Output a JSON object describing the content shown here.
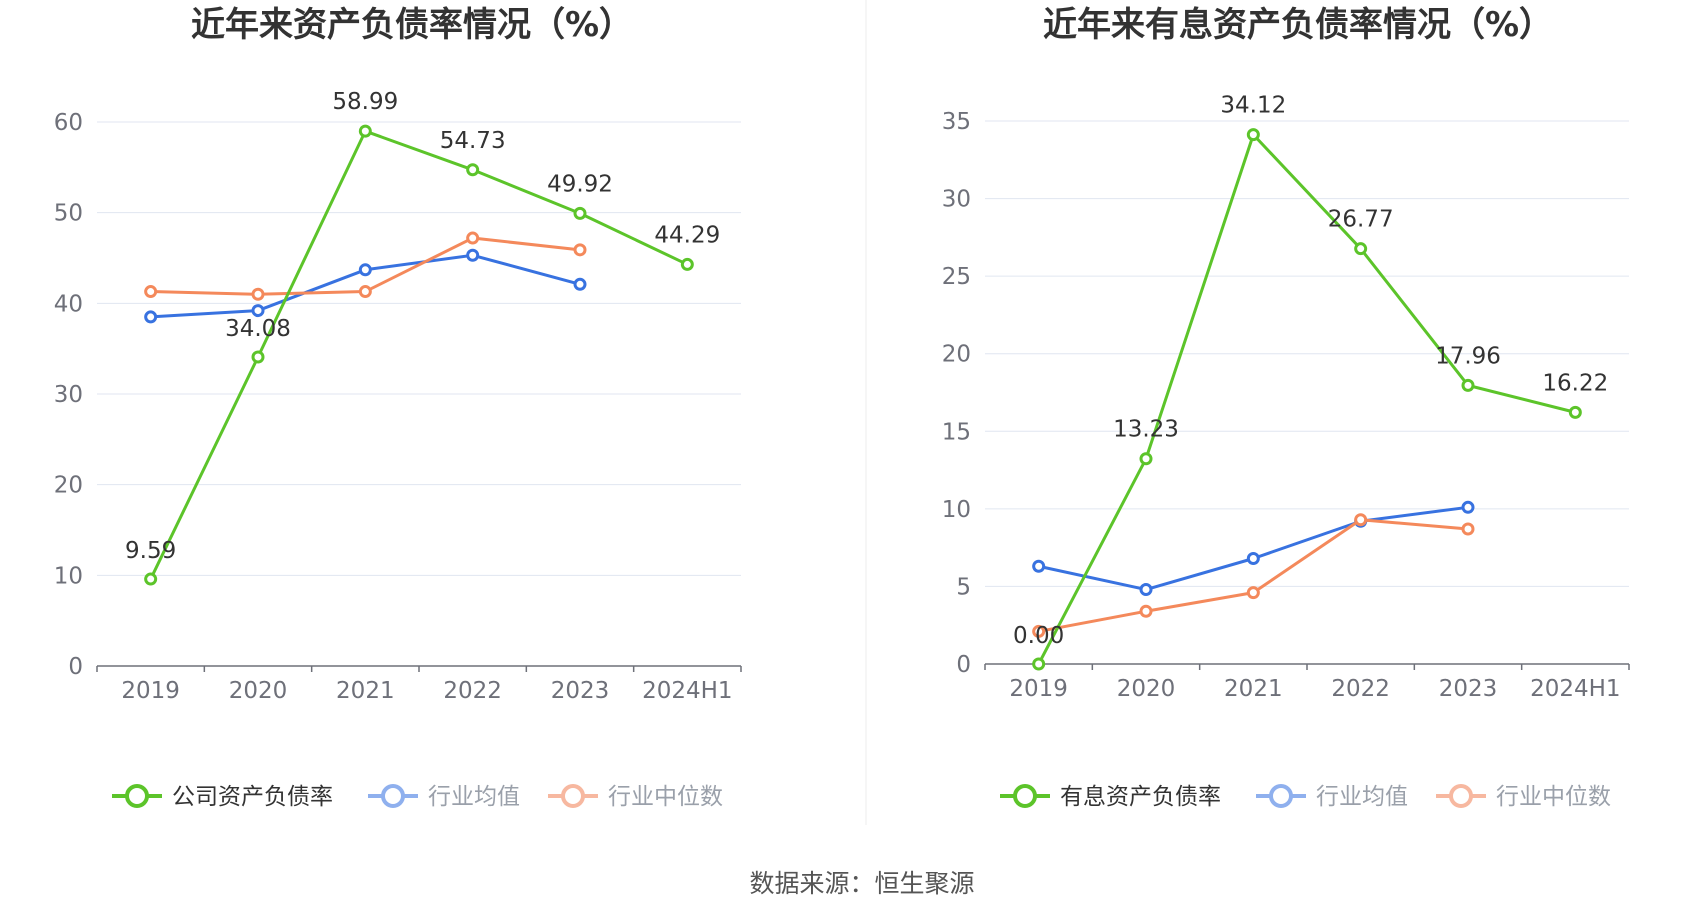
{
  "source_note": "数据来源：恒生聚源",
  "colors": {
    "company": "#5cc42a",
    "industry_avg": "#3872e0",
    "industry_median": "#f4895b",
    "legend_avg": "#8fb0ee",
    "legend_median": "#f7b8a0",
    "grid": "#e0e6f1",
    "axis": "#6e7079"
  },
  "chart_data": [
    {
      "type": "line",
      "title": "近年来资产负债率情况（%）",
      "categories": [
        "2019",
        "2020",
        "2021",
        "2022",
        "2023",
        "2024H1"
      ],
      "ylim": [
        0,
        60
      ],
      "yticks": [
        0,
        10,
        20,
        30,
        40,
        50,
        60
      ],
      "grid": true,
      "legend_position": "bottom",
      "series": [
        {
          "name": "公司资产负债率",
          "color_key": "company",
          "values": [
            9.59,
            34.08,
            58.99,
            54.73,
            49.92,
            44.29
          ],
          "labels": [
            "9.59",
            "34.08",
            "58.99",
            "54.73",
            "49.92",
            "44.29"
          ]
        },
        {
          "name": "行业均值",
          "color_key": "industry_avg",
          "values": [
            38.5,
            39.2,
            43.7,
            45.3,
            42.1,
            null
          ]
        },
        {
          "name": "行业中位数",
          "color_key": "industry_median",
          "values": [
            41.3,
            41.0,
            41.3,
            47.2,
            45.9,
            null
          ]
        }
      ]
    },
    {
      "type": "line",
      "title": "近年来有息资产负债率情况（%）",
      "categories": [
        "2019",
        "2020",
        "2021",
        "2022",
        "2023",
        "2024H1"
      ],
      "ylim": [
        0,
        35
      ],
      "yticks": [
        0,
        5,
        10,
        15,
        20,
        25,
        30,
        35
      ],
      "grid": true,
      "legend_position": "bottom",
      "series": [
        {
          "name": "有息资产负债率",
          "color_key": "company",
          "values": [
            0.0,
            13.23,
            34.12,
            26.77,
            17.96,
            16.22
          ],
          "labels": [
            "0.00",
            "13.23",
            "34.12",
            "26.77",
            "17.96",
            "16.22"
          ]
        },
        {
          "name": "行业均值",
          "color_key": "industry_avg",
          "values": [
            6.3,
            4.8,
            6.8,
            9.2,
            10.1,
            null
          ]
        },
        {
          "name": "行业中位数",
          "color_key": "industry_median",
          "values": [
            2.1,
            3.4,
            4.6,
            9.3,
            8.7,
            null
          ]
        }
      ]
    }
  ]
}
